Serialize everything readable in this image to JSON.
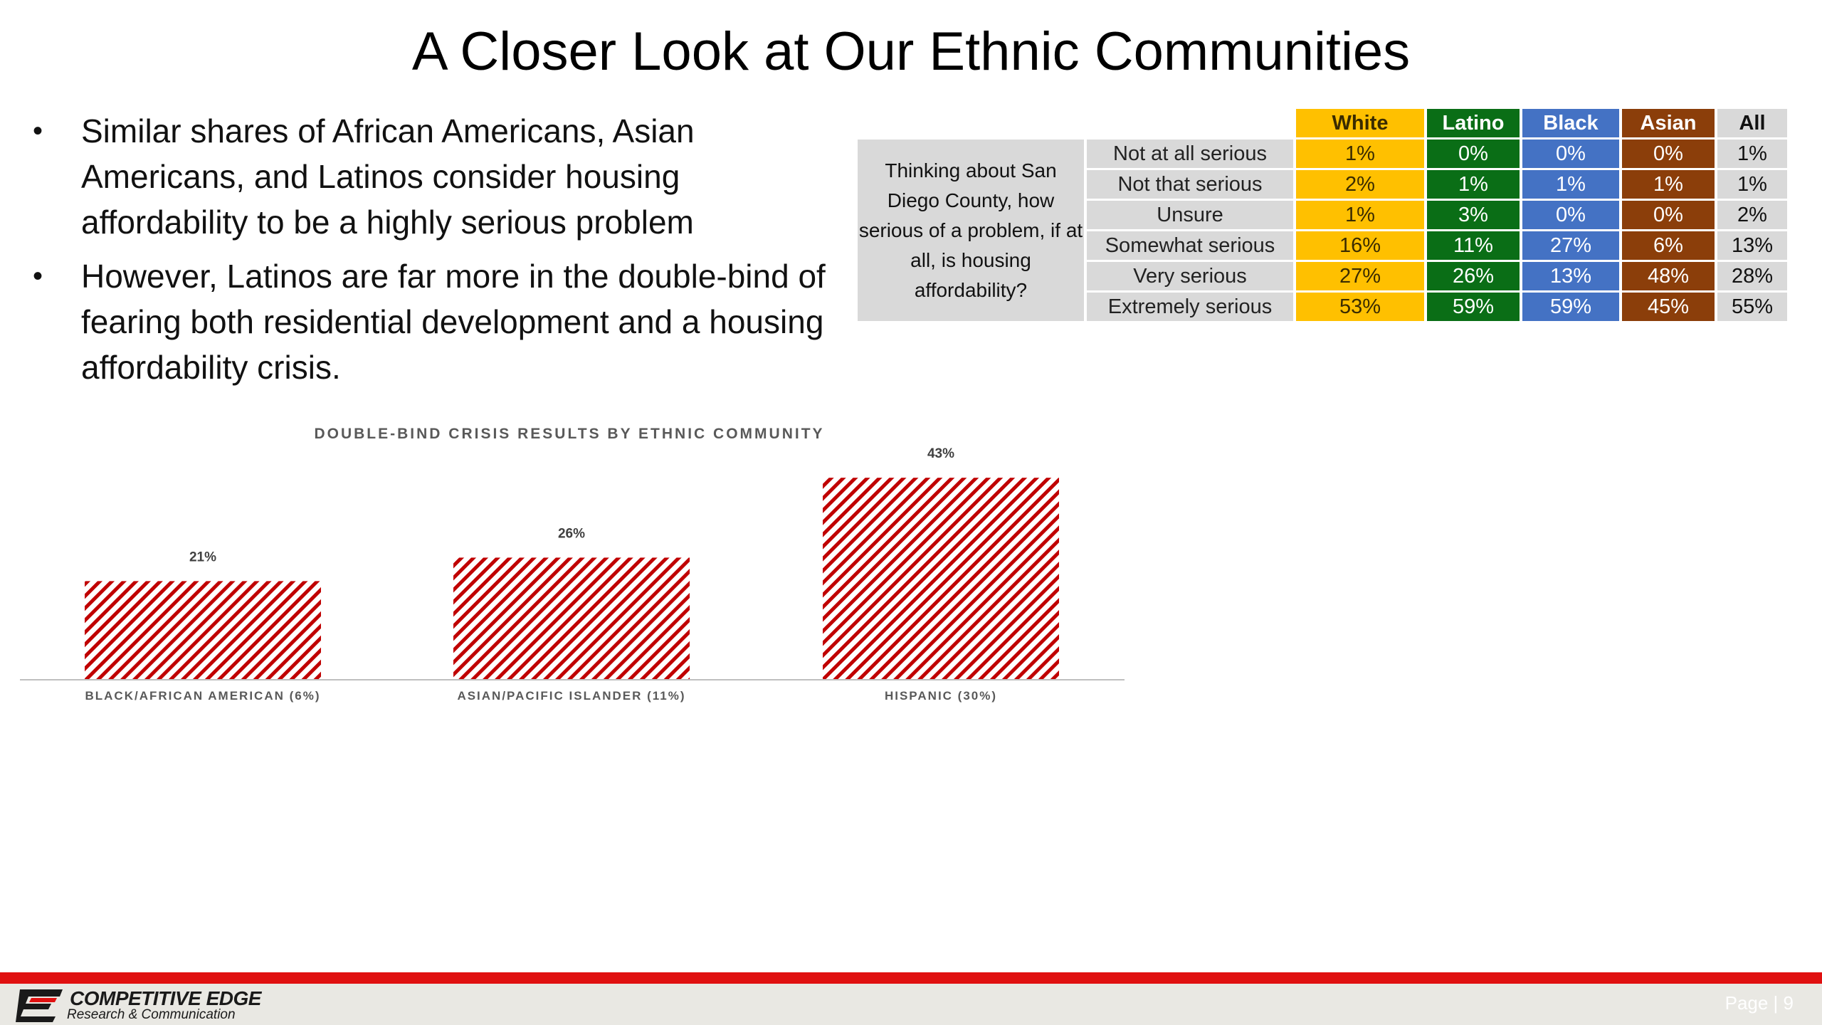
{
  "slide": {
    "title": "A Closer Look at Our Ethnic Communities",
    "bullets": [
      "Similar shares of African Americans, Asian Americans, and Latinos consider housing affordability to be a highly serious problem",
      "However, Latinos are far more in the double-bind of fearing both residential development and a housing affordability crisis."
    ]
  },
  "table": {
    "question": "Thinking about San Diego County, how serious of a problem, if at all, is housing affordability?",
    "columns": [
      "White",
      "Latino",
      "Black",
      "Asian",
      "All"
    ],
    "column_colors": [
      "#ffc000",
      "#0a6e16",
      "#4472c4",
      "#8b3e0a",
      "#d9d9d9"
    ],
    "rows": [
      {
        "label": "Not at all serious",
        "values": [
          "1%",
          "0%",
          "0%",
          "0%",
          "1%"
        ]
      },
      {
        "label": "Not that serious",
        "values": [
          "2%",
          "1%",
          "1%",
          "1%",
          "1%"
        ]
      },
      {
        "label": "Unsure",
        "values": [
          "1%",
          "3%",
          "0%",
          "0%",
          "2%"
        ]
      },
      {
        "label": "Somewhat serious",
        "values": [
          "16%",
          "11%",
          "27%",
          "6%",
          "13%"
        ]
      },
      {
        "label": "Very serious",
        "values": [
          "27%",
          "26%",
          "13%",
          "48%",
          "28%"
        ]
      },
      {
        "label": "Extremely serious",
        "values": [
          "53%",
          "59%",
          "59%",
          "45%",
          "55%"
        ]
      }
    ]
  },
  "chart_data": {
    "type": "bar",
    "title": "DOUBLE-BIND CRISIS RESULTS BY ETHNIC COMMUNITY",
    "categories": [
      "BLACK/AFRICAN AMERICAN (6%)",
      "ASIAN/PACIFIC ISLANDER (11%)",
      "HISPANIC (30%)"
    ],
    "values": [
      21,
      26,
      43
    ],
    "data_labels": [
      "21%",
      "26%",
      "43%"
    ],
    "ylim": [
      0,
      50
    ],
    "grid": false,
    "bar_fill": "red diagonal hatch",
    "bar_color": "#c00000"
  },
  "footer": {
    "brand": "COMPETITIVE EDGE",
    "tagline": "Research & Communication",
    "page": "Page | 9",
    "accent_color": "#e01010"
  }
}
